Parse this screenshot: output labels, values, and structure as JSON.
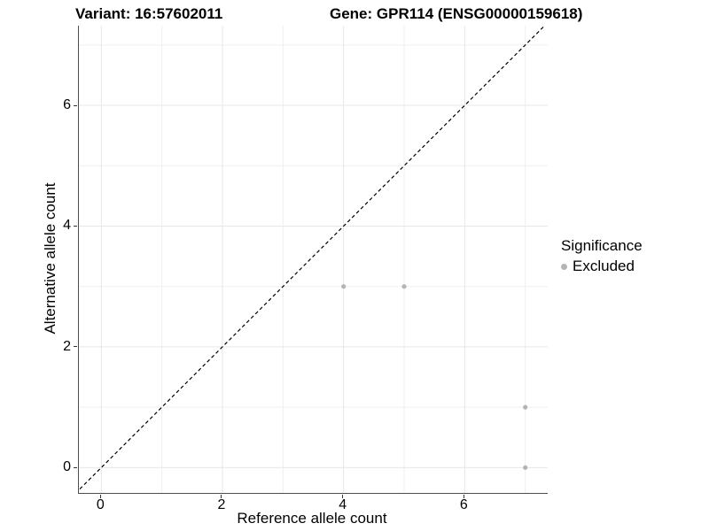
{
  "titles": {
    "variant": "Variant: 16:57602011",
    "gene": "Gene: GPR114 (ENSG00000159618)"
  },
  "chart_data": {
    "type": "scatter",
    "title_left": "Variant: 16:57602011",
    "title_right": "Gene: GPR114 (ENSG00000159618)",
    "xlabel": "Reference allele count",
    "ylabel": "Alternative allele count",
    "xlim": [
      -0.37,
      7.37
    ],
    "ylim": [
      -0.42,
      7.32
    ],
    "x_ticks": [
      0,
      2,
      4,
      6
    ],
    "y_ticks": [
      0,
      2,
      4,
      6
    ],
    "minor_gridlines_x": [
      1,
      3,
      5,
      7
    ],
    "minor_gridlines_y": [
      1,
      3,
      5,
      7
    ],
    "grid": true,
    "identity_line": {
      "style": "dashed",
      "from": [
        -0.5,
        -0.5
      ],
      "to": [
        7.6,
        7.6
      ],
      "color": "#000000"
    },
    "series": [
      {
        "name": "Excluded",
        "color": "#b4b4b4",
        "points": [
          {
            "x": 4,
            "y": 3
          },
          {
            "x": 5,
            "y": 3
          },
          {
            "x": 7,
            "y": 1
          },
          {
            "x": 7,
            "y": 0
          }
        ]
      }
    ],
    "legend": {
      "title": "Significance",
      "position": "right",
      "entries": [
        {
          "label": "Excluded",
          "color": "#b4b4b4"
        }
      ]
    }
  },
  "colors": {
    "background": "#ffffff",
    "axis_line": "#4d4d4d",
    "major_grid": "#e7e7e7",
    "minor_grid": "#efefef",
    "point": "#b4b4b4",
    "text": "#000000"
  }
}
